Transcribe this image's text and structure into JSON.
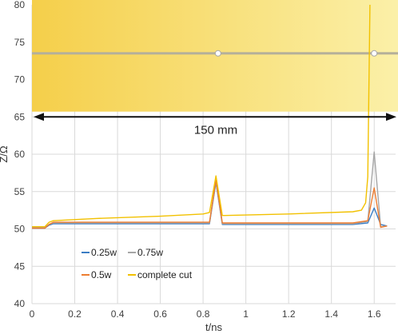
{
  "chart_data": {
    "type": "line",
    "xlabel": "t/ns",
    "ylabel": "Z/Ω",
    "xlim": [
      0,
      1.7
    ],
    "ylim": [
      40,
      80
    ],
    "xticks": [
      "0",
      "0.2",
      "0.4",
      "0.6",
      "0.8",
      "1",
      "1.2",
      "1.4",
      "1.6"
    ],
    "yticks": [
      "40",
      "45",
      "50",
      "55",
      "60",
      "65",
      "70",
      "75",
      "80"
    ],
    "grid": true,
    "legend_position": "bottom-left",
    "annotation": {
      "text": "150 mm",
      "x_range": [
        0,
        1.7
      ],
      "y": 65
    },
    "band": {
      "y_range": [
        65.7,
        80.8
      ],
      "line_y": 73.5,
      "markers_x": [
        0.87,
        1.6
      ],
      "color": "#f5cf4a"
    },
    "series": [
      {
        "name": "0.25w",
        "color": "#3b7dc4",
        "x": [
          0,
          0.06,
          0.08,
          0.1,
          0.3,
          0.6,
          0.83,
          0.86,
          0.89,
          0.9,
          1.2,
          1.5,
          1.57,
          1.6,
          1.63,
          1.66
        ],
        "y": [
          50.1,
          50.1,
          50.5,
          50.7,
          50.7,
          50.7,
          50.7,
          56.2,
          50.6,
          50.6,
          50.6,
          50.6,
          50.8,
          52.8,
          50.6,
          50.4
        ]
      },
      {
        "name": "0.75w",
        "color": "#a6a6a6",
        "x": [
          0,
          0.06,
          0.08,
          0.1,
          0.3,
          0.6,
          0.83,
          0.86,
          0.89,
          0.9,
          1.2,
          1.5,
          1.57,
          1.6,
          1.63,
          1.66
        ],
        "y": [
          50.2,
          50.2,
          50.6,
          50.8,
          50.8,
          50.8,
          50.8,
          56.4,
          50.7,
          50.7,
          50.7,
          50.7,
          51.0,
          60.3,
          50.3,
          50.4
        ]
      },
      {
        "name": "0.5w",
        "color": "#ed7d31",
        "x": [
          0,
          0.06,
          0.08,
          0.1,
          0.3,
          0.6,
          0.83,
          0.86,
          0.89,
          0.9,
          1.2,
          1.5,
          1.57,
          1.6,
          1.63,
          1.66
        ],
        "y": [
          50.1,
          50.1,
          50.6,
          50.9,
          50.9,
          50.9,
          50.9,
          56.5,
          50.8,
          50.8,
          50.8,
          50.8,
          51.1,
          55.5,
          50.2,
          50.4
        ]
      },
      {
        "name": "complete cut",
        "color": "#f2c100",
        "x": [
          0,
          0.06,
          0.08,
          0.1,
          0.3,
          0.6,
          0.8,
          0.83,
          0.86,
          0.89,
          0.9,
          1.2,
          1.5,
          1.54,
          1.56,
          1.57,
          1.58
        ],
        "y": [
          50.3,
          50.3,
          50.9,
          51.1,
          51.4,
          51.7,
          52.0,
          52.2,
          57.1,
          51.8,
          51.8,
          52.0,
          52.3,
          52.5,
          53.5,
          57.0,
          80.0
        ]
      }
    ]
  }
}
